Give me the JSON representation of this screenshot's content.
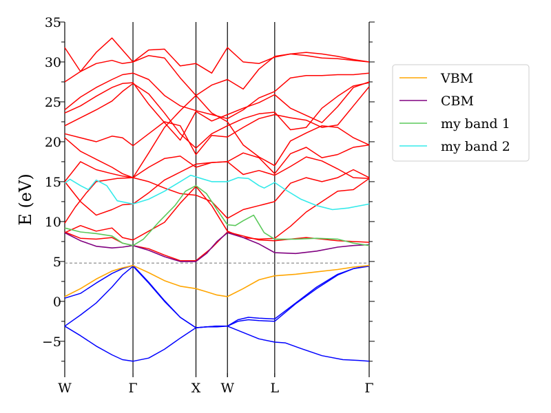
{
  "chart_data": {
    "type": "line",
    "title": "",
    "xlabel": "",
    "ylabel": "E (eV)",
    "ylim": [
      -9.5,
      35
    ],
    "xlim": [
      0,
      5.8
    ],
    "yticks": [
      -5,
      0,
      5,
      10,
      15,
      20,
      25,
      30,
      35
    ],
    "ytick_labels": [
      "−5",
      "0",
      "5",
      "10",
      "15",
      "20",
      "25",
      "30",
      "35"
    ],
    "kpoints": [
      {
        "label": "W",
        "x": 0
      },
      {
        "label": "Γ",
        "x": 1.3
      },
      {
        "label": "X",
        "x": 2.5
      },
      {
        "label": "W",
        "x": 3.1
      },
      {
        "label": "L",
        "x": 4.0
      },
      {
        "label": "Γ",
        "x": 5.8
      }
    ],
    "fermi_level": 4.8,
    "legend": {
      "placement": "outside-right",
      "entries": [
        {
          "label": "VBM",
          "color": "#ffa500"
        },
        {
          "label": "CBM",
          "color": "#800080"
        },
        {
          "label": "my band 1",
          "color": "#5ac85a"
        },
        {
          "label": "my band 2",
          "color": "#33eaea"
        }
      ]
    },
    "colors": {
      "valence": "#0000ff",
      "conduction": "#ff0000",
      "fermi": "#808080",
      "axis": "#000000"
    },
    "series": [
      {
        "name": "VBM",
        "color": "#ffa500",
        "x": [
          0,
          0.3,
          0.6,
          0.9,
          1.1,
          1.3,
          1.6,
          1.9,
          2.2,
          2.5,
          2.7,
          2.9,
          3.1,
          3.4,
          3.7,
          4.0,
          4.4,
          4.8,
          5.2,
          5.5,
          5.8
        ],
        "y": [
          0.6,
          1.6,
          2.8,
          3.8,
          4.2,
          4.5,
          3.6,
          2.6,
          1.9,
          1.6,
          1.2,
          0.8,
          0.6,
          1.6,
          2.7,
          3.2,
          3.4,
          3.7,
          4.0,
          4.3,
          4.5
        ]
      },
      {
        "name": "CBM",
        "color": "#800080",
        "x": [
          0,
          0.3,
          0.6,
          0.9,
          1.1,
          1.3,
          1.6,
          1.9,
          2.2,
          2.5,
          2.7,
          2.9,
          3.1,
          3.4,
          3.7,
          4.0,
          4.4,
          4.8,
          5.2,
          5.5,
          5.8
        ],
        "y": [
          8.6,
          7.6,
          6.9,
          6.7,
          6.8,
          7.0,
          6.4,
          5.6,
          5.0,
          5.0,
          6.0,
          7.5,
          8.6,
          8.0,
          7.2,
          6.1,
          6.0,
          6.3,
          6.8,
          7.0,
          7.1
        ]
      },
      {
        "name": "my band 1",
        "color": "#5ac85a",
        "x": [
          0,
          0.3,
          0.6,
          0.9,
          1.1,
          1.3,
          1.5,
          1.8,
          2.1,
          2.3,
          2.5,
          2.7,
          2.9,
          3.1,
          3.25,
          3.4,
          3.6,
          3.8,
          4.0,
          4.4,
          4.8,
          5.2,
          5.5,
          5.8
        ],
        "y": [
          9.2,
          8.7,
          8.5,
          8.2,
          7.3,
          7.0,
          7.8,
          10.0,
          12.0,
          13.8,
          14.5,
          13.5,
          11.5,
          9.6,
          9.5,
          10.1,
          10.8,
          8.6,
          7.8,
          7.8,
          7.9,
          7.8,
          7.3,
          7.0
        ]
      },
      {
        "name": "my band 2",
        "color": "#33eaea",
        "x": [
          0,
          0.1,
          0.3,
          0.45,
          0.6,
          0.8,
          1.0,
          1.3,
          1.6,
          1.9,
          2.2,
          2.4,
          2.6,
          2.8,
          3.1,
          3.3,
          3.5,
          3.7,
          3.8,
          4.0,
          4.2,
          4.5,
          4.8,
          5.1,
          5.4,
          5.8
        ],
        "y": [
          14.8,
          15.3,
          14.5,
          14.0,
          15.2,
          14.5,
          12.6,
          12.2,
          12.8,
          13.8,
          15.0,
          15.8,
          15.4,
          15.0,
          15.0,
          15.5,
          15.4,
          14.5,
          14.2,
          14.9,
          14.0,
          12.8,
          12.0,
          11.5,
          11.7,
          12.2
        ]
      }
    ],
    "valence_bands": [
      {
        "x": [
          0,
          0.3,
          0.6,
          0.9,
          1.1,
          1.3,
          1.6,
          1.9,
          2.2,
          2.5,
          2.7,
          2.9,
          3.1,
          3.3,
          3.5,
          3.7,
          4.0,
          4.4,
          4.8,
          5.2,
          5.5,
          5.8
        ],
        "y": [
          0.4,
          1.0,
          2.3,
          3.5,
          4.1,
          4.5,
          2.4,
          0.1,
          -2.0,
          -3.3,
          -3.2,
          -3.1,
          -3.1,
          -2.5,
          -2.3,
          -2.4,
          -2.5,
          -0.3,
          1.6,
          3.3,
          4.1,
          4.5
        ]
      },
      {
        "x": [
          0,
          0.3,
          0.6,
          0.9,
          1.1,
          1.3,
          1.6,
          1.9,
          2.2,
          2.5,
          2.7,
          2.9,
          3.1,
          3.3,
          3.5,
          3.7,
          4.0,
          4.4,
          4.8,
          5.2,
          5.5,
          5.8
        ],
        "y": [
          -3.1,
          -1.7,
          -0.2,
          1.8,
          3.3,
          4.4,
          2.3,
          0.0,
          -2.0,
          -3.3,
          -3.2,
          -3.1,
          -3.1,
          -2.3,
          -2.0,
          -2.1,
          -2.2,
          -0.2,
          1.8,
          3.4,
          4.1,
          4.4
        ]
      },
      {
        "x": [
          0,
          0.3,
          0.6,
          0.9,
          1.1,
          1.3,
          1.6,
          1.9,
          2.2,
          2.5,
          2.7,
          2.9,
          3.1,
          3.4,
          3.7,
          4.0,
          4.2,
          4.5,
          4.9,
          5.3,
          5.6,
          5.8
        ],
        "y": [
          -3.1,
          -4.3,
          -5.6,
          -6.7,
          -7.3,
          -7.5,
          -7.1,
          -6.0,
          -4.6,
          -3.3,
          -3.2,
          -3.2,
          -3.1,
          -3.9,
          -4.7,
          -5.1,
          -5.2,
          -5.9,
          -6.8,
          -7.3,
          -7.4,
          -7.5
        ]
      }
    ],
    "conduction_bands": [
      {
        "x": [
          0,
          0.3,
          0.6,
          0.9,
          1.1,
          1.3,
          1.6,
          1.9,
          2.2,
          2.5,
          2.8,
          3.1,
          3.4,
          3.7,
          4.0,
          4.3,
          4.6,
          4.9,
          5.2,
          5.5,
          5.8
        ],
        "y": [
          8.7,
          7.9,
          7.8,
          8.0,
          7.3,
          7.0,
          6.6,
          5.8,
          5.1,
          5.1,
          6.7,
          8.7,
          8.2,
          7.7,
          7.6,
          7.8,
          8.0,
          7.8,
          7.6,
          7.5,
          7.4
        ]
      },
      {
        "x": [
          0,
          0.3,
          0.6,
          0.9,
          1.1,
          1.3,
          1.6,
          1.9,
          2.2,
          2.5,
          2.8,
          3.1,
          3.4,
          3.7,
          4.0,
          4.3,
          4.6,
          4.9,
          5.2,
          5.5,
          5.8
        ],
        "y": [
          8.6,
          9.5,
          8.8,
          9.2,
          8.0,
          7.7,
          8.8,
          9.9,
          12.3,
          14.4,
          12.0,
          8.8,
          8.0,
          7.8,
          7.9,
          9.4,
          11.2,
          12.5,
          13.8,
          14.0,
          15.4
        ]
      },
      {
        "x": [
          0,
          0.2,
          0.4,
          0.6,
          0.8,
          1.0,
          1.3,
          1.6,
          1.9,
          2.2,
          2.5,
          2.8,
          3.1,
          3.4,
          3.7,
          4.0,
          4.3,
          4.6,
          4.9,
          5.2,
          5.5,
          5.8
        ],
        "y": [
          9.8,
          11.8,
          13.5,
          15.0,
          15.2,
          15.4,
          15.5,
          15.0,
          14.2,
          13.5,
          13.3,
          12.5,
          10.4,
          11.5,
          12.0,
          12.5,
          14.8,
          15.5,
          15.0,
          15.5,
          16.5,
          15.5
        ]
      },
      {
        "x": [
          0,
          0.3,
          0.6,
          0.9,
          1.1,
          1.3,
          1.6,
          1.9,
          2.2,
          2.5,
          2.8,
          3.1,
          3.4,
          3.7,
          4.0,
          4.3,
          4.6,
          4.9,
          5.2,
          5.5,
          5.8
        ],
        "y": [
          15.0,
          12.5,
          10.8,
          11.5,
          12.1,
          12.2,
          13.6,
          15.2,
          16.2,
          17.2,
          17.4,
          17.5,
          15.9,
          16.4,
          15.8,
          16.9,
          18.1,
          17.6,
          16.6,
          15.5,
          15.4
        ]
      },
      {
        "x": [
          0,
          0.3,
          0.6,
          0.9,
          1.1,
          1.3,
          1.6,
          1.9,
          2.2,
          2.5,
          2.8,
          3.1,
          3.4,
          3.7,
          4.0,
          4.3,
          4.6,
          4.9,
          5.2,
          5.5,
          5.8
        ],
        "y": [
          15.0,
          17.5,
          16.5,
          16.0,
          15.7,
          15.5,
          16.8,
          17.9,
          18.2,
          16.8,
          17.4,
          17.5,
          18.6,
          18.0,
          16.0,
          18.5,
          19.3,
          18.0,
          18.4,
          19.3,
          19.6
        ]
      },
      {
        "x": [
          0,
          0.3,
          0.6,
          0.9,
          1.1,
          1.3,
          1.6,
          1.9,
          2.2,
          2.5,
          2.8,
          3.1,
          3.4,
          3.7,
          4.0,
          4.3,
          4.6,
          4.9,
          5.2,
          5.5,
          5.8
        ],
        "y": [
          20.5,
          18.8,
          17.8,
          16.8,
          16.0,
          15.5,
          18.6,
          21.8,
          23.9,
          25.8,
          23.6,
          22.5,
          19.6,
          18.1,
          17.0,
          20.1,
          21.1,
          22.0,
          21.8,
          20.5,
          19.6
        ]
      },
      {
        "x": [
          0,
          0.3,
          0.6,
          0.9,
          1.1,
          1.3,
          1.6,
          1.9,
          2.2,
          2.5,
          2.8,
          3.1,
          3.4,
          3.7,
          4.0,
          4.3,
          4.6,
          4.9,
          5.2,
          5.5,
          5.8
        ],
        "y": [
          21.0,
          20.5,
          20.0,
          20.7,
          20.5,
          19.5,
          21.0,
          22.5,
          22.0,
          18.4,
          20.8,
          20.6,
          21.8,
          22.9,
          23.4,
          23.0,
          22.7,
          21.8,
          22.1,
          24.5,
          26.9
        ]
      },
      {
        "x": [
          0,
          0.3,
          0.6,
          0.9,
          1.1,
          1.3,
          1.6,
          1.9,
          2.2,
          2.5,
          2.8,
          3.1,
          3.4,
          3.7,
          4.0,
          4.3,
          4.6,
          4.9,
          5.2,
          5.5,
          5.8
        ],
        "y": [
          22.0,
          23.0,
          24.0,
          25.1,
          26.3,
          27.3,
          26.0,
          23.6,
          21.0,
          19.2,
          21.0,
          22.0,
          22.9,
          23.5,
          23.7,
          21.5,
          21.8,
          24.2,
          25.7,
          27.0,
          27.4
        ]
      },
      {
        "x": [
          0,
          0.3,
          0.6,
          0.9,
          1.1,
          1.3,
          1.6,
          1.9,
          2.2,
          2.5,
          2.8,
          3.1,
          3.4,
          3.7,
          4.0,
          4.3,
          4.6,
          4.9,
          5.2,
          5.5,
          5.8
        ],
        "y": [
          23.6,
          24.5,
          25.7,
          26.8,
          27.3,
          27.4,
          24.7,
          22.4,
          20.2,
          23.8,
          22.6,
          23.4,
          24.2,
          24.9,
          25.9,
          24.2,
          23.3,
          22.4,
          24.4,
          26.8,
          27.5
        ]
      },
      {
        "x": [
          0,
          0.3,
          0.6,
          0.9,
          1.1,
          1.3,
          1.6,
          1.9,
          2.2,
          2.5,
          2.8,
          3.1,
          3.4,
          3.7,
          4.0,
          4.3,
          4.6,
          4.9,
          5.2,
          5.5,
          5.8
        ],
        "y": [
          24.0,
          25.6,
          26.8,
          27.8,
          28.4,
          28.6,
          27.8,
          25.8,
          24.5,
          23.9,
          23.4,
          22.9,
          24.0,
          25.5,
          26.3,
          28.0,
          28.3,
          28.3,
          28.4,
          28.4,
          28.6
        ]
      },
      {
        "x": [
          0,
          0.3,
          0.6,
          0.9,
          1.1,
          1.3,
          1.6,
          1.9,
          2.2,
          2.5,
          2.8,
          3.1,
          3.4,
          3.7,
          4.0,
          4.3,
          4.6,
          4.9,
          5.2,
          5.5,
          5.8
        ],
        "y": [
          27.5,
          28.8,
          29.8,
          30.2,
          29.8,
          30.0,
          30.8,
          30.5,
          28.0,
          25.8,
          27.1,
          27.8,
          26.6,
          29.1,
          30.7,
          31.0,
          30.8,
          30.5,
          30.4,
          30.2,
          30.0
        ]
      },
      {
        "x": [
          0,
          0.3,
          0.6,
          0.9,
          1.1,
          1.3,
          1.6,
          1.9,
          2.2,
          2.5,
          2.8,
          3.1,
          3.4,
          3.7,
          4.0,
          4.3,
          4.6,
          4.9,
          5.2,
          5.5,
          5.8
        ],
        "y": [
          31.8,
          28.8,
          31.2,
          33.0,
          31.5,
          30.0,
          31.5,
          31.6,
          29.5,
          29.8,
          28.6,
          31.8,
          30.0,
          29.8,
          30.6,
          31.0,
          31.2,
          31.0,
          30.7,
          30.3,
          30.0
        ]
      }
    ]
  }
}
